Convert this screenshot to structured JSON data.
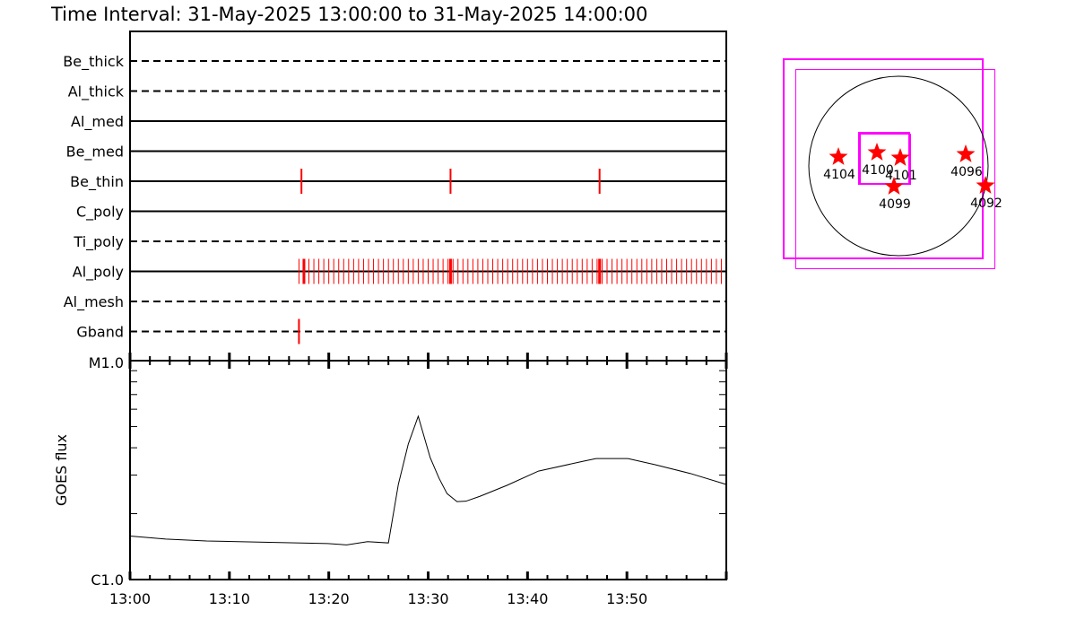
{
  "title": "Time Interval: 31-May-2025 13:00:00 to 31-May-2025 14:00:00",
  "chart_data": [
    {
      "type": "timeline",
      "xlim": [
        "13:00",
        "14:00"
      ],
      "rows": [
        {
          "name": "Be_thick",
          "style": "dashed",
          "exposures": []
        },
        {
          "name": "Al_thick",
          "style": "dashed",
          "exposures": []
        },
        {
          "name": "Al_med",
          "style": "solid",
          "exposures": []
        },
        {
          "name": "Be_med",
          "style": "solid",
          "exposures": []
        },
        {
          "name": "Be_thin",
          "style": "solid",
          "exposures": [
            "13:17:15",
            "13:32:15",
            "13:47:15"
          ]
        },
        {
          "name": "C_poly",
          "style": "solid",
          "exposures": []
        },
        {
          "name": "Ti_poly",
          "style": "dashed",
          "exposures": []
        },
        {
          "name": "Al_poly",
          "style": "solid",
          "exposures_cadence": {
            "start": "13:17:00",
            "end": "13:59:30",
            "step_seconds": 30
          },
          "exposures": [
            "13:17:30",
            "13:32:15",
            "13:47:15"
          ]
        },
        {
          "name": "Al_mesh",
          "style": "dashed",
          "exposures": []
        },
        {
          "name": "Gband",
          "style": "dashed",
          "exposures": [
            "13:17:00"
          ]
        }
      ],
      "mark_color": "#ff0000"
    },
    {
      "type": "line",
      "ylabel": "GOES flux",
      "yscale": "log",
      "ylim": [
        1e-06,
        1e-05
      ],
      "ytick_labels": [
        "C1.0",
        "M1.0"
      ],
      "xlim": [
        "13:00",
        "14:00"
      ],
      "xtick_labels": [
        "13:00",
        "13:10",
        "13:20",
        "13:30",
        "13:40",
        "13:50"
      ],
      "x": [
        "13:00:00",
        "13:03:36",
        "13:07:42",
        "13:14:00",
        "13:19:54",
        "13:21:48",
        "13:23:54",
        "13:26:00",
        "13:27:00",
        "13:28:00",
        "13:29:00",
        "13:30:12",
        "13:31:06",
        "13:31:54",
        "13:32:54",
        "13:33:48",
        "13:35:12",
        "13:37:54",
        "13:41:06",
        "13:45:36",
        "13:46:54",
        "13:50:06",
        "13:52:48",
        "13:56:24",
        "14:00:00"
      ],
      "y": [
        1.58e-06,
        1.53e-06,
        1.5e-06,
        1.48e-06,
        1.46e-06,
        1.44e-06,
        1.49e-06,
        1.47e-06,
        2.72e-06,
        4.16e-06,
        5.57e-06,
        3.61e-06,
        2.9e-06,
        2.47e-06,
        2.27e-06,
        2.28e-06,
        2.4e-06,
        2.69e-06,
        3.13e-06,
        3.47e-06,
        3.57e-06,
        3.57e-06,
        3.35e-06,
        3.05e-06,
        2.72e-06
      ]
    }
  ],
  "map": {
    "regions": [
      "4104",
      "4100",
      "4101",
      "4099",
      "4096",
      "4092"
    ],
    "star_color": "#ff0000",
    "fov_color": "#ff00ff"
  }
}
